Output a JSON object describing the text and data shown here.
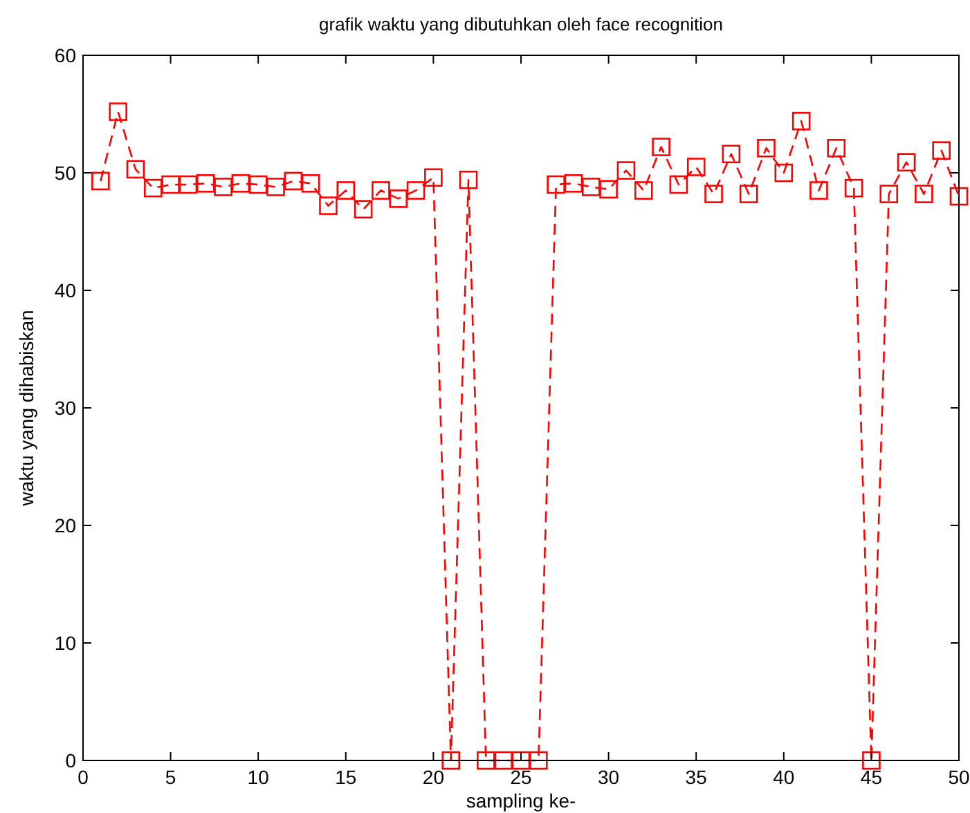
{
  "chart_data": {
    "type": "line",
    "title": "grafik waktu yang dibutuhkan oleh face recognition",
    "xlabel": "sampling ke-",
    "ylabel": "waktu yang dihabiskan",
    "x": [
      1,
      2,
      3,
      4,
      5,
      6,
      7,
      8,
      9,
      10,
      11,
      12,
      13,
      14,
      15,
      16,
      17,
      18,
      19,
      20,
      21,
      22,
      23,
      24,
      25,
      26,
      27,
      28,
      29,
      30,
      31,
      32,
      33,
      34,
      35,
      36,
      37,
      38,
      39,
      40,
      41,
      42,
      43,
      44,
      45,
      46,
      47,
      48,
      49,
      50
    ],
    "series": [
      {
        "color": "#ff0000",
        "values": [
          49.3,
          55.2,
          50.3,
          48.7,
          49,
          49,
          49.1,
          48.8,
          49.1,
          49,
          48.8,
          49.3,
          49.1,
          47.2,
          48.5,
          46.9,
          48.5,
          47.8,
          48.5,
          49.6,
          0,
          49.4,
          0,
          0,
          0,
          0,
          49,
          49.1,
          48.8,
          48.6,
          50.2,
          48.5,
          52.2,
          49,
          50.5,
          48.2,
          51.6,
          48.2,
          52.1,
          50,
          54.4,
          48.5,
          52.1,
          48.7,
          0,
          48.2,
          50.9,
          48.2,
          51.9,
          48
        ]
      }
    ],
    "xlim": [
      0,
      50
    ],
    "xticks": [
      0,
      5,
      10,
      15,
      20,
      25,
      30,
      35,
      40,
      45,
      50
    ],
    "ylim": [
      0,
      60
    ],
    "yticks": [
      0,
      10,
      20,
      30,
      40,
      50,
      60
    ],
    "marker": "square",
    "line_style": "dashed",
    "grid": false
  }
}
